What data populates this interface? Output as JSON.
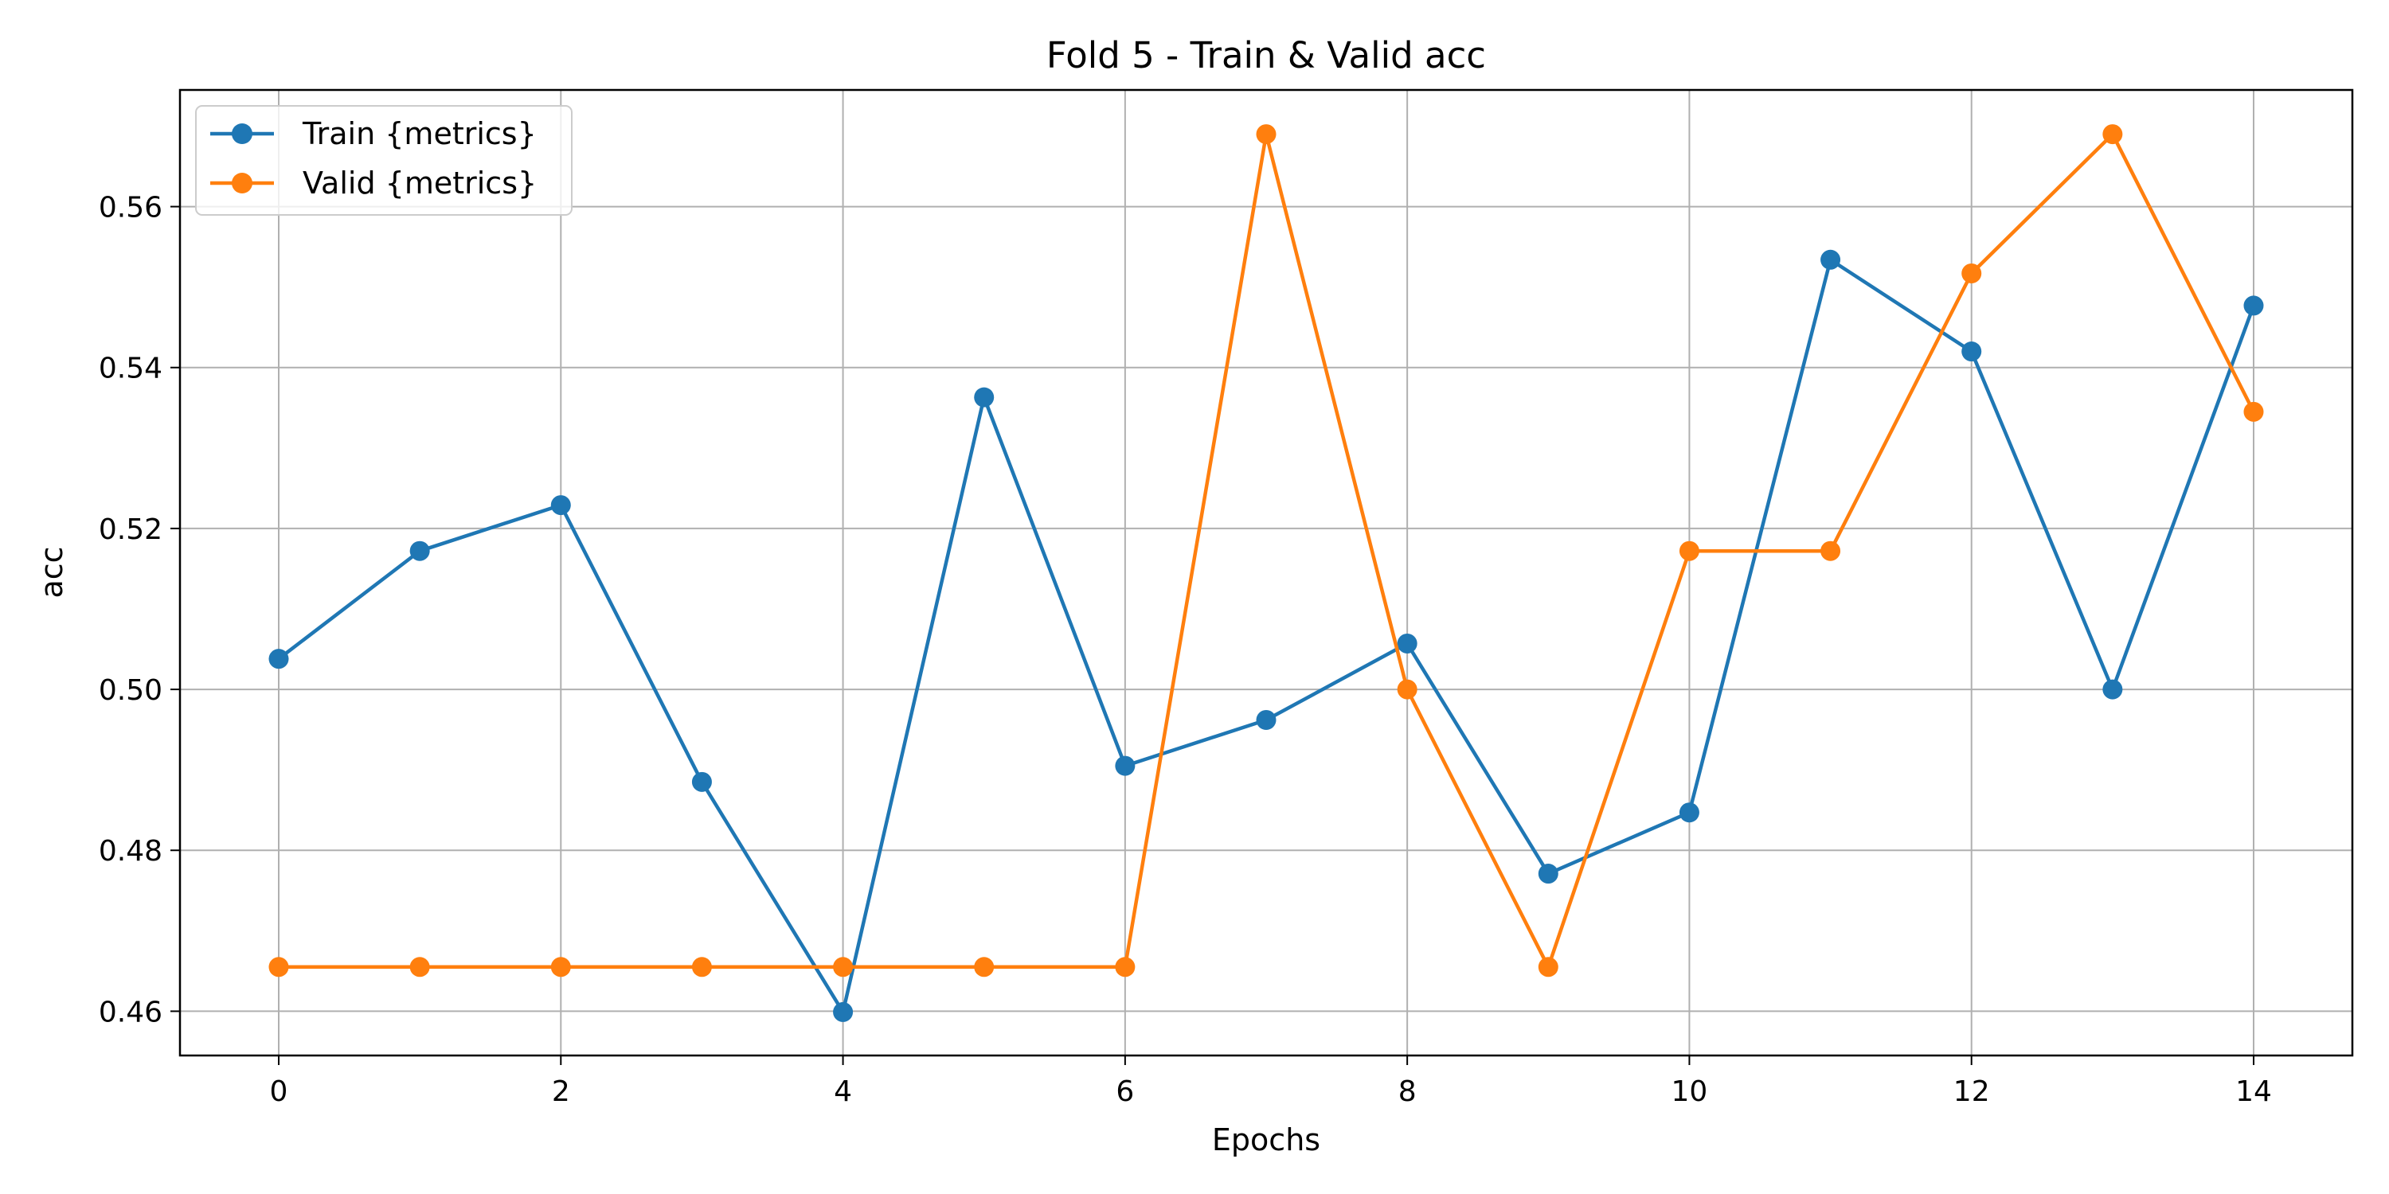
{
  "chart_data": {
    "type": "line",
    "title": "Fold 5 - Train & Valid acc",
    "xlabel": "Epochs",
    "ylabel": "acc",
    "x": [
      0,
      1,
      2,
      3,
      4,
      5,
      6,
      7,
      8,
      9,
      10,
      11,
      12,
      13,
      14
    ],
    "xlim": [
      -0.7,
      14.7
    ],
    "ylim": [
      0.4545,
      0.5745
    ],
    "xticks": [
      0,
      2,
      4,
      6,
      8,
      10,
      12,
      14
    ],
    "yticks": [
      0.46,
      0.48,
      0.5,
      0.52,
      0.54,
      0.56
    ],
    "xtick_labels": [
      "0",
      "2",
      "4",
      "6",
      "8",
      "10",
      "12",
      "14"
    ],
    "ytick_labels": [
      "0.46",
      "0.48",
      "0.50",
      "0.52",
      "0.54",
      "0.56"
    ],
    "grid": true,
    "legend_position": "top-left",
    "series": [
      {
        "name": "Train {metrics}",
        "color": "#1f77b4",
        "values": [
          0.5038,
          0.5172,
          0.5229,
          0.4885,
          0.4599,
          0.5363,
          0.4905,
          0.4962,
          0.5057,
          0.4771,
          0.4847,
          0.5534,
          0.542,
          0.5,
          0.5477
        ]
      },
      {
        "name": "Valid {metrics}",
        "color": "#ff7f0e",
        "values": [
          0.4655,
          0.4655,
          0.4655,
          0.4655,
          0.4655,
          0.4655,
          0.4655,
          0.569,
          0.5,
          0.4655,
          0.5172,
          0.5172,
          0.5517,
          0.569,
          0.5345
        ]
      }
    ]
  }
}
